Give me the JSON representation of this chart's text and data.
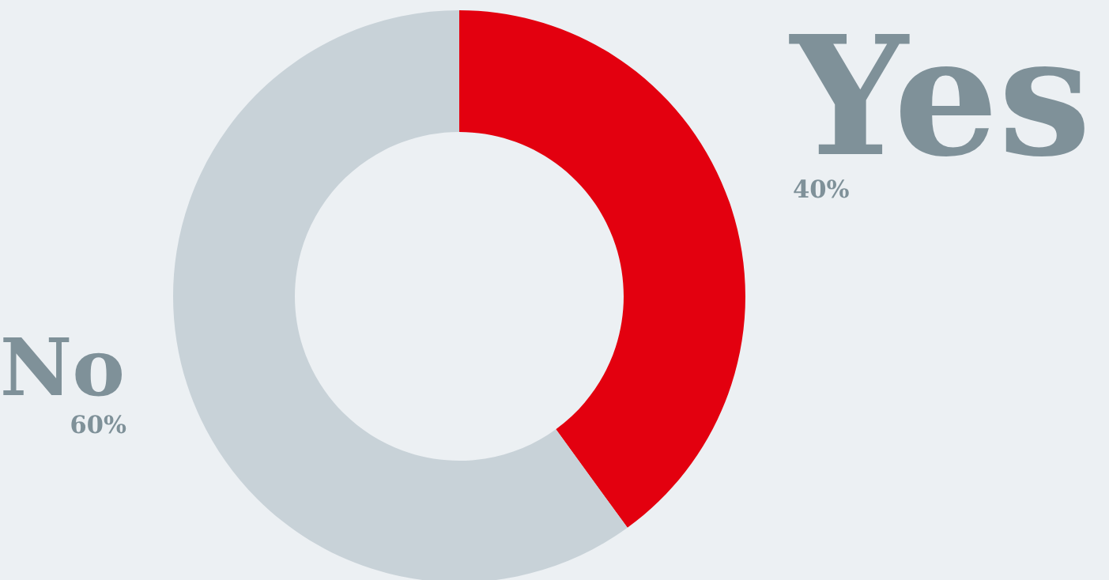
{
  "chart_data": {
    "type": "donut",
    "categories": [
      "Yes",
      "No"
    ],
    "values": [
      40,
      60
    ],
    "colors": [
      "#e3000f",
      "#c8d2d8"
    ],
    "value_labels": [
      "40%",
      "60%"
    ],
    "legend": false
  }
}
